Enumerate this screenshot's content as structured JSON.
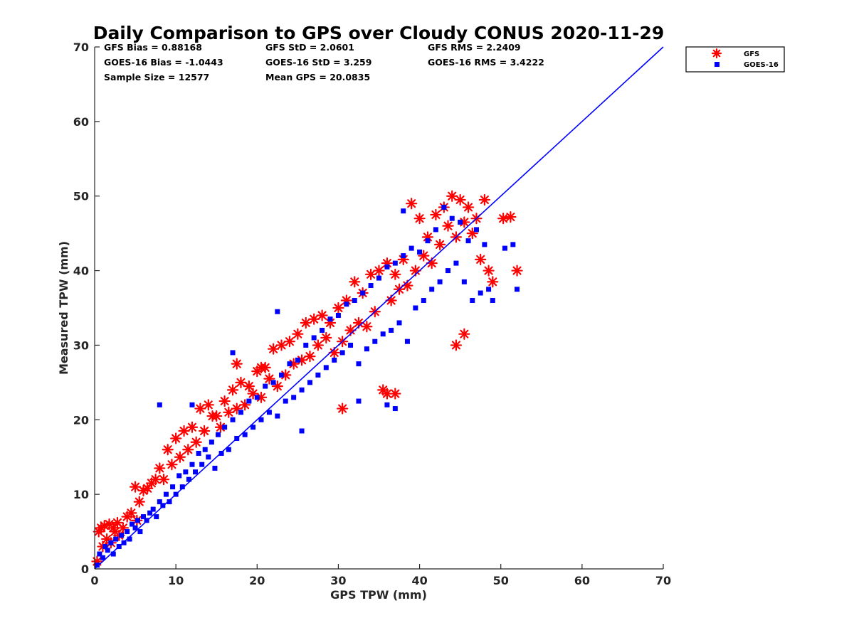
{
  "chart_data": {
    "type": "scatter",
    "title": "Daily Comparison to GPS over Cloudy CONUS 2020-11-29",
    "xlabel": "GPS TPW (mm)",
    "ylabel": "Measured TPW (mm)",
    "xlim": [
      0,
      70
    ],
    "ylim": [
      0,
      70
    ],
    "xticks": [
      "0",
      "10",
      "20",
      "30",
      "40",
      "50",
      "60",
      "70"
    ],
    "yticks": [
      "0",
      "10",
      "20",
      "30",
      "40",
      "50",
      "60",
      "70"
    ],
    "grid": false,
    "legend_position": "top-right-outside",
    "stats": [
      [
        "GFS Bias = 0.88168",
        "GFS StD = 2.0601",
        "GFS RMS = 2.2409"
      ],
      [
        "GOES-16 Bias = -1.0443",
        "GOES-16 StD = 3.259",
        "GOES-16 RMS = 3.4222"
      ],
      [
        "Sample Size = 12577",
        "Mean GPS = 20.0835"
      ]
    ],
    "reference_line": {
      "x": [
        0,
        70
      ],
      "y": [
        0,
        70
      ],
      "color": "#0000ff"
    },
    "series": [
      {
        "name": "GFS",
        "marker": "asterisk",
        "color": "#ff0000",
        "x": [
          0.3,
          0.5,
          0.8,
          1.0,
          1.2,
          1.5,
          1.8,
          2.0,
          2.3,
          2.5,
          2.8,
          3.0,
          3.5,
          4.0,
          4.5,
          5.0,
          5.2,
          5.5,
          6.0,
          6.5,
          7.0,
          7.5,
          8.0,
          8.5,
          9.0,
          9.5,
          10.0,
          10.5,
          11.0,
          11.5,
          12.0,
          12.5,
          13.0,
          13.5,
          14.0,
          14.5,
          15.0,
          15.5,
          16.0,
          16.5,
          17.0,
          17.5,
          18.0,
          18.5,
          19.0,
          19.5,
          20.0,
          20.5,
          21.0,
          21.5,
          22.0,
          22.5,
          23.0,
          23.5,
          24.0,
          24.5,
          25.0,
          25.5,
          26.0,
          26.5,
          27.0,
          27.5,
          28.0,
          28.5,
          29.0,
          29.5,
          30.0,
          30.5,
          31.0,
          31.5,
          32.0,
          32.5,
          33.0,
          33.5,
          34.0,
          34.5,
          35.0,
          35.5,
          36.0,
          36.5,
          37.0,
          37.5,
          38.0,
          38.5,
          39.0,
          39.5,
          40.0,
          40.5,
          41.0,
          41.5,
          42.0,
          42.5,
          43.0,
          43.5,
          44.0,
          44.5,
          45.0,
          45.5,
          46.0,
          46.5,
          47.0,
          47.5,
          48.0,
          48.5,
          49.0,
          50.3,
          51.2,
          52.0,
          44.5,
          45.5,
          36.0,
          37.0,
          30.5,
          17.5,
          20.5
        ],
        "y": [
          1.0,
          5.0,
          5.5,
          3.0,
          5.8,
          4.0,
          6.0,
          3.5,
          5.5,
          5.0,
          6.2,
          4.5,
          5.5,
          7.0,
          7.5,
          11.0,
          6.5,
          9.0,
          10.5,
          10.8,
          11.5,
          12.0,
          13.5,
          12.0,
          16.0,
          14.0,
          17.5,
          15.0,
          18.5,
          16.0,
          19.0,
          17.0,
          21.5,
          18.5,
          22.0,
          20.5,
          20.5,
          19.0,
          22.5,
          21.0,
          24.0,
          21.5,
          25.0,
          22.0,
          24.5,
          23.5,
          26.5,
          23.0,
          27.0,
          25.5,
          29.5,
          24.5,
          30.0,
          26.0,
          30.5,
          27.5,
          31.5,
          28.0,
          33.0,
          28.5,
          33.5,
          30.0,
          34.0,
          31.0,
          33.0,
          29.0,
          35.0,
          30.5,
          36.0,
          32.0,
          38.5,
          33.0,
          37.0,
          32.5,
          39.5,
          34.5,
          40.0,
          24.0,
          41.0,
          36.0,
          39.5,
          37.5,
          41.5,
          38.0,
          49.0,
          40.0,
          47.0,
          42.0,
          44.5,
          41.0,
          47.5,
          43.5,
          48.5,
          46.0,
          50.0,
          44.5,
          49.5,
          46.5,
          48.5,
          45.0,
          47.0,
          41.5,
          49.5,
          40.0,
          38.5,
          47.0,
          47.2,
          40.0,
          30.0,
          31.5,
          23.5,
          23.5,
          21.5,
          27.5,
          27.0
        ]
      },
      {
        "name": "GOES-16",
        "marker": "square",
        "color": "#0000ff",
        "x": [
          0.3,
          0.6,
          1.0,
          1.3,
          1.6,
          2.0,
          2.3,
          2.6,
          3.0,
          3.3,
          3.6,
          4.0,
          4.3,
          4.6,
          5.0,
          5.3,
          5.6,
          6.0,
          6.4,
          6.8,
          7.2,
          7.6,
          8.0,
          8.4,
          8.8,
          9.2,
          9.6,
          10.0,
          10.4,
          10.8,
          11.2,
          11.6,
          12.0,
          12.4,
          12.8,
          13.2,
          13.6,
          14.0,
          14.4,
          14.8,
          15.2,
          15.6,
          16.0,
          16.5,
          17.0,
          17.5,
          18.0,
          18.5,
          19.0,
          19.5,
          20.0,
          20.5,
          21.0,
          21.5,
          22.0,
          22.5,
          23.0,
          23.5,
          24.0,
          24.5,
          25.0,
          25.5,
          26.0,
          26.5,
          27.0,
          27.5,
          28.0,
          28.5,
          29.0,
          29.5,
          30.0,
          30.5,
          31.0,
          31.5,
          32.0,
          32.5,
          33.0,
          33.5,
          34.0,
          34.5,
          35.0,
          35.5,
          36.0,
          36.5,
          37.0,
          37.5,
          38.0,
          38.5,
          39.0,
          39.5,
          40.0,
          40.5,
          41.0,
          41.5,
          42.0,
          42.5,
          43.0,
          43.5,
          44.0,
          44.5,
          45.0,
          45.5,
          46.0,
          46.5,
          47.0,
          47.5,
          48.0,
          48.5,
          49.0,
          50.5,
          51.5,
          52.0,
          38.0,
          36.0,
          37.0,
          32.5,
          17.0,
          22.5,
          25.5,
          12.0,
          8.0
        ],
        "y": [
          0.5,
          2.0,
          1.5,
          3.0,
          2.5,
          3.5,
          2.0,
          4.0,
          3.0,
          4.5,
          3.5,
          5.0,
          4.0,
          6.0,
          5.5,
          6.5,
          5.0,
          7.0,
          6.5,
          7.5,
          8.0,
          7.0,
          9.0,
          8.5,
          10.0,
          9.0,
          11.0,
          10.0,
          12.5,
          11.0,
          13.0,
          12.0,
          14.0,
          13.0,
          15.5,
          14.0,
          16.0,
          15.0,
          17.0,
          13.5,
          18.0,
          15.5,
          19.0,
          16.0,
          20.0,
          17.5,
          21.0,
          18.0,
          22.5,
          19.0,
          23.0,
          20.0,
          24.5,
          21.0,
          25.0,
          20.5,
          26.0,
          22.5,
          27.5,
          23.0,
          28.0,
          24.0,
          30.0,
          25.0,
          31.0,
          26.0,
          32.0,
          27.0,
          33.5,
          28.0,
          34.0,
          29.0,
          35.5,
          30.0,
          36.0,
          27.5,
          37.0,
          29.5,
          38.0,
          30.5,
          39.0,
          31.5,
          40.5,
          32.0,
          41.0,
          33.0,
          42.0,
          30.5,
          43.0,
          35.0,
          42.5,
          36.0,
          44.0,
          37.5,
          45.5,
          38.5,
          48.5,
          40.0,
          47.0,
          41.0,
          46.5,
          38.5,
          44.0,
          36.0,
          45.5,
          37.0,
          43.5,
          37.5,
          36.0,
          43.0,
          43.5,
          37.5,
          48.0,
          22.0,
          21.5,
          22.5,
          29.0,
          34.5,
          18.5,
          22.0,
          22.0
        ]
      }
    ]
  }
}
